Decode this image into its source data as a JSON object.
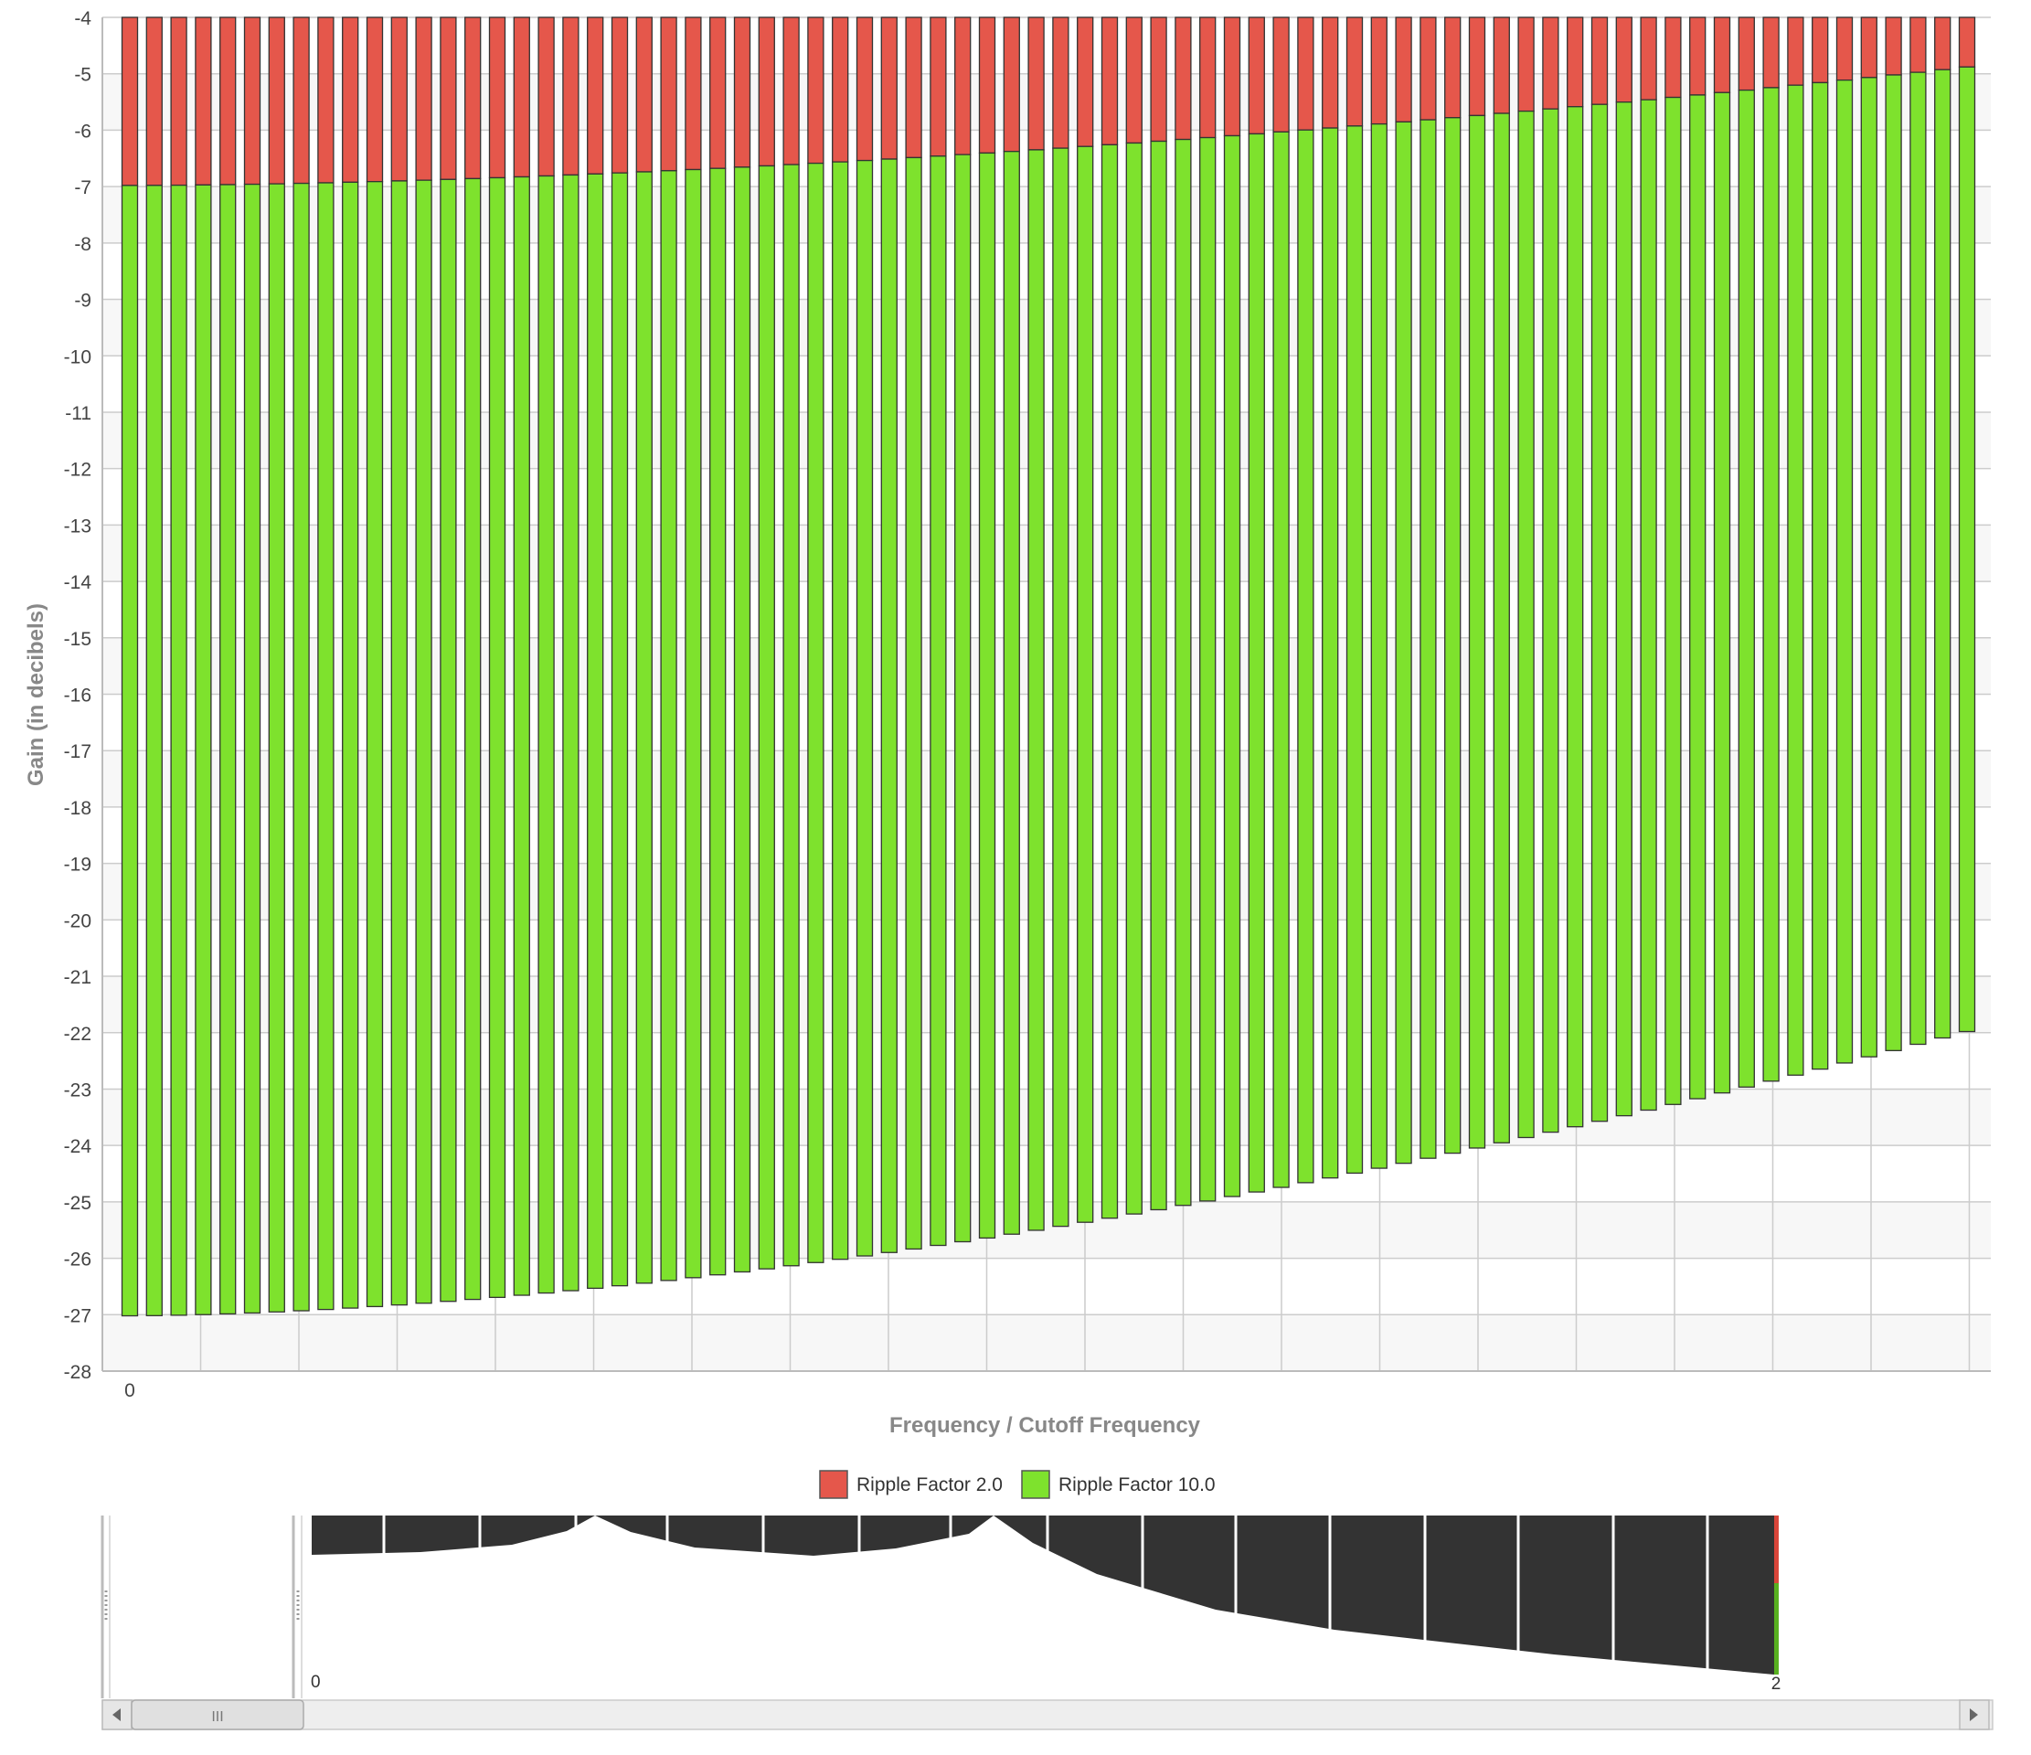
{
  "colors": {
    "ripple_2": "#e5574b",
    "ripple_10": "#7ee22d",
    "bar_stroke": "#333333",
    "grid": "#cccccc",
    "band_alt": "#f7f7f7",
    "navigator_fill": "#333333"
  },
  "chart_data": {
    "type": "bar",
    "stacked": false,
    "title": "",
    "xlabel": "Frequency / Cutoff Frequency",
    "ylabel": "Gain (in decibels)",
    "ylim": [
      -28,
      -4
    ],
    "yticks": [
      -4,
      -5,
      -6,
      -7,
      -8,
      -9,
      -10,
      -11,
      -12,
      -13,
      -14,
      -15,
      -16,
      -17,
      -18,
      -19,
      -20,
      -21,
      -22,
      -23,
      -24,
      -25,
      -26,
      -27,
      -28
    ],
    "x_start_label": "0",
    "x_count": 76,
    "grid": true,
    "legend_position": "bottom-center",
    "series": [
      {
        "name": "Ripple Factor 2.0",
        "color": "#e5574b",
        "start": -6.98,
        "end": -4.88
      },
      {
        "name": "Ripple Factor 10.0",
        "color": "#7ee22d",
        "start": -27.02,
        "end": -21.98
      }
    ],
    "curve_exponent": 1.7
  },
  "legend": {
    "items": [
      {
        "label": "Ripple Factor 2.0",
        "color": "#e5574b"
      },
      {
        "label": "Ripple Factor 10.0",
        "color": "#7ee22d"
      }
    ]
  },
  "navigator": {
    "start_label": "0",
    "end_label": "2",
    "scrollbar_grip": "III"
  }
}
